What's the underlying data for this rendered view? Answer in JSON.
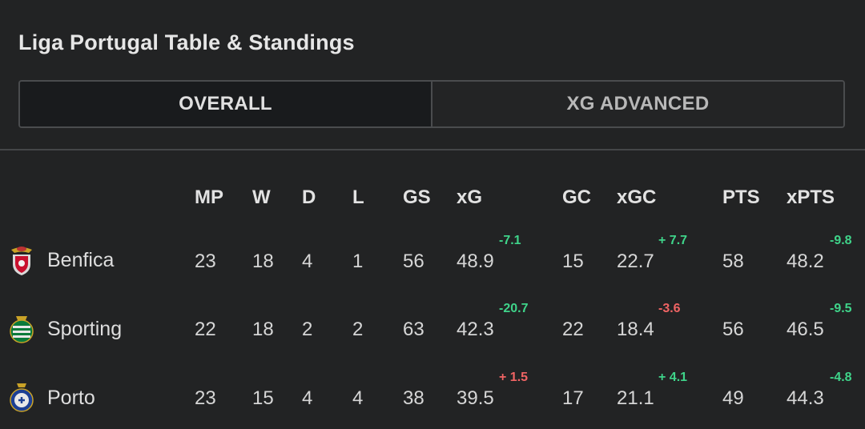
{
  "title": "Liga Portugal Table & Standings",
  "tabs": [
    {
      "label": "OVERALL",
      "active": true
    },
    {
      "label": "XG ADVANCED",
      "active": false
    }
  ],
  "columns": [
    "MP",
    "W",
    "D",
    "L",
    "GS",
    "xG",
    "GC",
    "xGC",
    "PTS",
    "xPTS"
  ],
  "colors": {
    "positive": "#3fd48a",
    "negative": "#f06464"
  },
  "rows": [
    {
      "team": "Benfica",
      "logo_icon": "benfica-crest-icon",
      "mp": "23",
      "w": "18",
      "d": "4",
      "l": "1",
      "gs": "56",
      "xg": "48.9",
      "xg_diff": "-7.1",
      "xg_diff_sign": "positive",
      "gc": "15",
      "xgc": "22.7",
      "xgc_diff": "+ 7.7",
      "xgc_diff_sign": "positive",
      "pts": "58",
      "xpts": "48.2",
      "xpts_diff": "-9.8",
      "xpts_diff_sign": "positive"
    },
    {
      "team": "Sporting",
      "logo_icon": "sporting-crest-icon",
      "mp": "22",
      "w": "18",
      "d": "2",
      "l": "2",
      "gs": "63",
      "xg": "42.3",
      "xg_diff": "-20.7",
      "xg_diff_sign": "positive",
      "gc": "22",
      "xgc": "18.4",
      "xgc_diff": "-3.6",
      "xgc_diff_sign": "negative",
      "pts": "56",
      "xpts": "46.5",
      "xpts_diff": "-9.5",
      "xpts_diff_sign": "positive"
    },
    {
      "team": "Porto",
      "logo_icon": "porto-crest-icon",
      "mp": "23",
      "w": "15",
      "d": "4",
      "l": "4",
      "gs": "38",
      "xg": "39.5",
      "xg_diff": "+ 1.5",
      "xg_diff_sign": "negative",
      "gc": "17",
      "xgc": "21.1",
      "xgc_diff": "+ 4.1",
      "xgc_diff_sign": "positive",
      "pts": "49",
      "xpts": "44.3",
      "xpts_diff": "-4.8",
      "xpts_diff_sign": "positive"
    }
  ]
}
